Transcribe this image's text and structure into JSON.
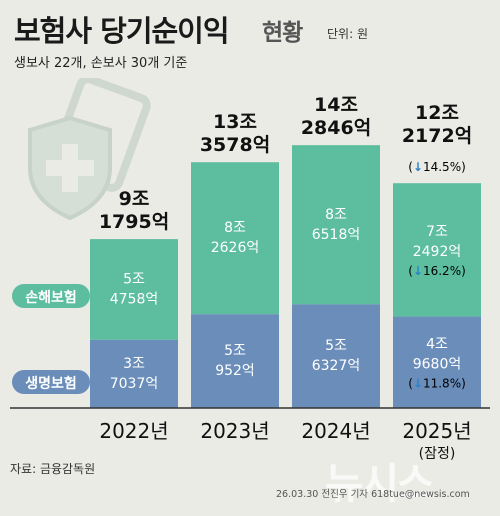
{
  "header": {
    "title": "보험사 당기순이익",
    "title_sub": "현황",
    "unit": "단위: 원",
    "subtitle": "생보사 22개, 손보사 30개 기준"
  },
  "footer": {
    "source": "자료: 금융감독원",
    "credit": "26.03.30 전진우 기자 618tue@newsis.com",
    "watermark": "뉴시스"
  },
  "colors": {
    "life": "#6a8dba",
    "nonlife": "#5dbd9f",
    "total_bar": "#4fae90",
    "arrow": "#2b82c9",
    "background": "#ebebe6"
  },
  "chart_data": {
    "type": "bar",
    "stacked": true,
    "categories": [
      "2022년",
      "2023년",
      "2024년",
      "2025년"
    ],
    "category_note": {
      "2025년": "(잠정)"
    },
    "series": [
      {
        "name": "생명보험",
        "values": [
          3.7037,
          5.0952,
          5.6327,
          4.968
        ],
        "labels": [
          "3조\n7037억",
          "5조\n952억",
          "5조\n6327억",
          "4조\n9680억"
        ]
      },
      {
        "name": "손해보험",
        "values": [
          5.4758,
          8.2626,
          8.6518,
          7.2492
        ],
        "labels": [
          "5조\n4758억",
          "8조\n2626억",
          "8조\n6518억",
          "7조\n2492억"
        ]
      }
    ],
    "totals": [
      9.1795,
      13.3578,
      14.2846,
      12.2172
    ],
    "total_labels": [
      "9조\n1795억",
      "13조\n3578억",
      "14조\n2846억",
      "12조\n2172억"
    ],
    "changes": {
      "total": [
        "",
        "",
        "",
        "(↓14.5%)"
      ],
      "손해보험": [
        "",
        "",
        "",
        "(↓16.2%)"
      ],
      "생명보험": [
        "",
        "",
        "",
        "(↓11.8%)"
      ]
    },
    "legend_placement": "left, inline with segments"
  }
}
